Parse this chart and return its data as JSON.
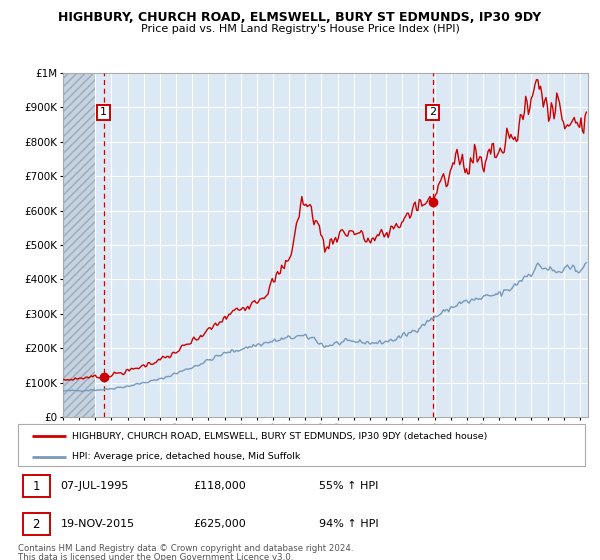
{
  "title_line1": "HIGHBURY, CHURCH ROAD, ELMSWELL, BURY ST EDMUNDS, IP30 9DY",
  "title_line2": "Price paid vs. HM Land Registry's House Price Index (HPI)",
  "background_color": "#dce9f5",
  "plot_bg_color": "#dce9f5",
  "grid_color": "#ffffff",
  "red_line_color": "#cc0000",
  "blue_line_color": "#7799bb",
  "marker_color": "#cc0000",
  "vline_color": "#cc0000",
  "ylim": [
    0,
    1000000
  ],
  "yticks": [
    0,
    100000,
    200000,
    300000,
    400000,
    500000,
    600000,
    700000,
    800000,
    900000,
    1000000
  ],
  "ytick_labels": [
    "£0",
    "£100K",
    "£200K",
    "£300K",
    "£400K",
    "£500K",
    "£600K",
    "£700K",
    "£800K",
    "£900K",
    "£1M"
  ],
  "sale1_date": 1995.52,
  "sale1_price": 118000,
  "sale2_date": 2015.89,
  "sale2_price": 625000,
  "legend_red": "HIGHBURY, CHURCH ROAD, ELMSWELL, BURY ST EDMUNDS, IP30 9DY (detached house)",
  "legend_blue": "HPI: Average price, detached house, Mid Suffolk",
  "annotation1_date": "07-JUL-1995",
  "annotation1_price": "£118,000",
  "annotation1_hpi": "55% ↑ HPI",
  "annotation2_date": "19-NOV-2015",
  "annotation2_price": "£625,000",
  "annotation2_hpi": "94% ↑ HPI",
  "footer": "Contains HM Land Registry data © Crown copyright and database right 2024.\nThis data is licensed under the Open Government Licence v3.0.",
  "xmin": 1993.0,
  "xmax": 2025.5
}
